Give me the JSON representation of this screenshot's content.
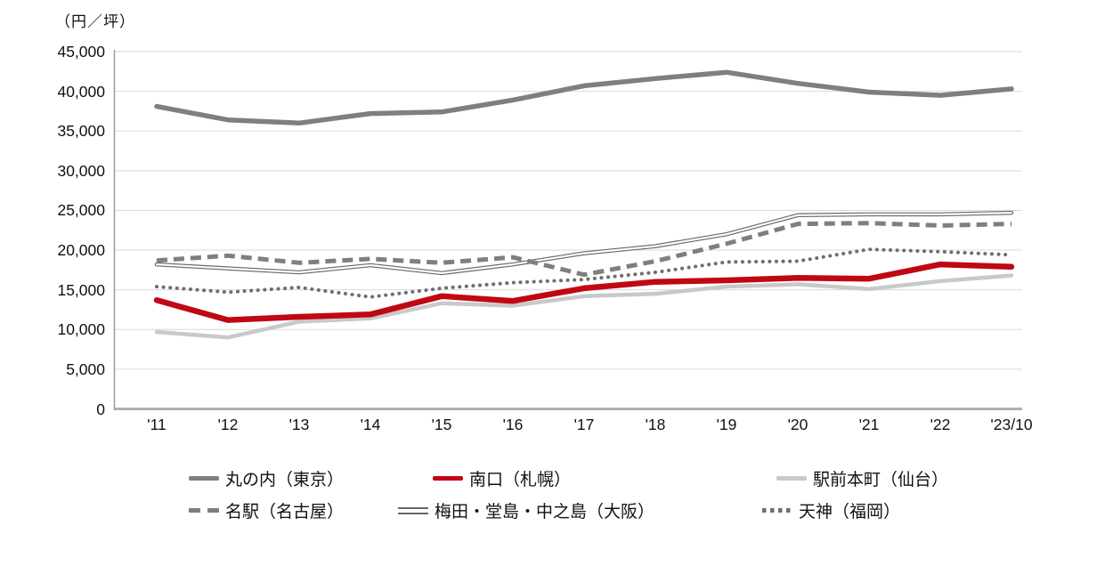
{
  "chart_data": {
    "type": "line",
    "title": "（円／坪）",
    "categories": [
      "'11",
      "'12",
      "'13",
      "'14",
      "'15",
      "'16",
      "'17",
      "'18",
      "'19",
      "'20",
      "'21",
      "'22",
      "'23/10"
    ],
    "ylim": [
      0,
      45000
    ],
    "y_tick_step": 5000,
    "grid": "horizontal",
    "legend_position": "bottom",
    "axis_color": "#b0b0b0",
    "gridline_color": "#d9d9d9",
    "series": [
      {
        "name": "丸の内（東京）",
        "style": "solid",
        "color": "#7f7f7f",
        "width": 5.5,
        "values": [
          38100,
          36400,
          36000,
          37200,
          37400,
          38900,
          40700,
          41600,
          42400,
          41000,
          39900,
          39500,
          40300
        ]
      },
      {
        "name": "南口（札幌）",
        "style": "solid",
        "color": "#c00714",
        "width": 6.5,
        "values": [
          13700,
          11200,
          11600,
          11900,
          14200,
          13600,
          15200,
          16000,
          16200,
          16500,
          16400,
          18200,
          17900
        ]
      },
      {
        "name": "駅前本町（仙台）",
        "style": "solid",
        "color": "#c9c9c9",
        "width": 4.5,
        "values": [
          9700,
          9000,
          11000,
          11400,
          13300,
          13000,
          14200,
          14500,
          15400,
          15700,
          15100,
          16100,
          16800
        ]
      },
      {
        "name": "名駅（名古屋）",
        "style": "dashed",
        "color": "#7f7f7f",
        "width": 5,
        "values": [
          18700,
          19300,
          18400,
          18900,
          18400,
          19100,
          16900,
          18600,
          20800,
          23300,
          23400,
          23100,
          23300
        ]
      },
      {
        "name": "梅田・堂島・中之島（大阪）",
        "style": "double",
        "color": "#666666",
        "width": 4.5,
        "values": [
          18200,
          17700,
          17200,
          18100,
          17100,
          18200,
          19600,
          20500,
          22000,
          24400,
          24500,
          24500,
          24700
        ]
      },
      {
        "name": "天神（福岡）",
        "style": "dotted",
        "color": "#6e6e6e",
        "width": 4,
        "values": [
          15400,
          14700,
          15300,
          14100,
          15200,
          15900,
          16300,
          17200,
          18500,
          18600,
          20100,
          19800,
          19400
        ]
      }
    ]
  }
}
